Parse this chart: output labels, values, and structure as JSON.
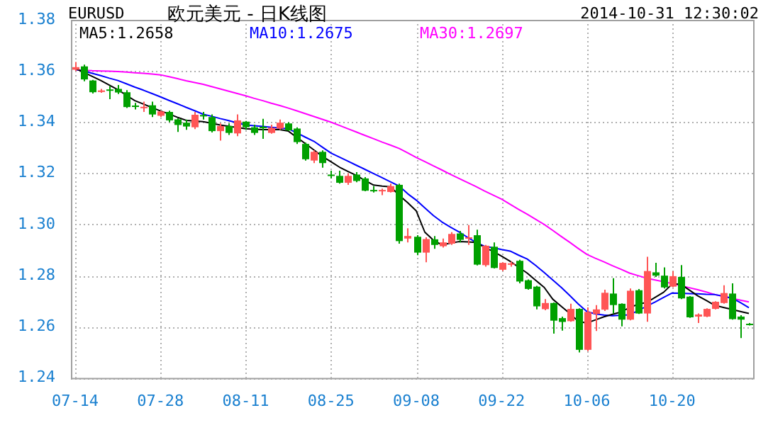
{
  "chart_data": {
    "type": "candlestick",
    "title": "欧元美元 - 日K线图",
    "subtitle": "EURUSD",
    "annotations": [
      "2014-10-31 12:30:02"
    ],
    "categories": [
      "07-14",
      null,
      null,
      null,
      null,
      null,
      null,
      null,
      null,
      null,
      "07-28",
      null,
      null,
      null,
      null,
      null,
      null,
      null,
      null,
      null,
      "08-11",
      null,
      null,
      null,
      null,
      null,
      null,
      null,
      null,
      null,
      "08-25",
      null,
      null,
      null,
      null,
      null,
      null,
      null,
      null,
      null,
      "09-08",
      null,
      null,
      null,
      null,
      null,
      null,
      null,
      null,
      null,
      "09-22",
      null,
      null,
      null,
      null,
      null,
      null,
      null,
      null,
      null,
      "10-06",
      null,
      null,
      null,
      null,
      null,
      null,
      null,
      null,
      null,
      "10-20",
      null,
      null,
      null,
      null,
      null,
      null,
      null,
      null,
      null
    ],
    "ohlc": [
      [
        1.3605,
        1.3635,
        1.36,
        1.3615
      ],
      [
        1.3618,
        1.3625,
        1.356,
        1.3567
      ],
      [
        1.3563,
        1.3565,
        1.3512,
        1.3517
      ],
      [
        1.3518,
        1.353,
        1.3515,
        1.3524
      ],
      [
        1.3528,
        1.3541,
        1.349,
        1.3525
      ],
      [
        1.353,
        1.3545,
        1.351,
        1.3516
      ],
      [
        1.3517,
        1.3525,
        1.3455,
        1.3459
      ],
      [
        1.3465,
        1.3475,
        1.345,
        1.3462
      ],
      [
        1.3455,
        1.348,
        1.344,
        1.346
      ],
      [
        1.3466,
        1.348,
        1.342,
        1.343
      ],
      [
        1.3425,
        1.3445,
        1.342,
        1.3442
      ],
      [
        1.344,
        1.3445,
        1.34,
        1.3407
      ],
      [
        1.3411,
        1.3415,
        1.3362,
        1.3389
      ],
      [
        1.3398,
        1.341,
        1.337,
        1.3383
      ],
      [
        1.338,
        1.344,
        1.3373,
        1.3429
      ],
      [
        1.3428,
        1.344,
        1.341,
        1.3425
      ],
      [
        1.342,
        1.343,
        1.336,
        1.3365
      ],
      [
        1.3365,
        1.3395,
        1.3328,
        1.3385
      ],
      [
        1.3385,
        1.3395,
        1.335,
        1.3358
      ],
      [
        1.3356,
        1.343,
        1.3345,
        1.3407
      ],
      [
        1.3402,
        1.3405,
        1.337,
        1.338
      ],
      [
        1.338,
        1.339,
        1.335,
        1.3358
      ],
      [
        1.3382,
        1.3413,
        1.3335,
        1.338
      ],
      [
        1.3358,
        1.339,
        1.3355,
        1.3378
      ],
      [
        1.3375,
        1.341,
        1.337,
        1.3398
      ],
      [
        1.3395,
        1.34,
        1.3365,
        1.3368
      ],
      [
        1.3375,
        1.338,
        1.3315,
        1.3322
      ],
      [
        1.3315,
        1.332,
        1.325,
        1.3255
      ],
      [
        1.325,
        1.329,
        1.324,
        1.3284
      ],
      [
        1.3284,
        1.329,
        1.3222,
        1.324
      ],
      [
        1.3195,
        1.321,
        1.318,
        1.319
      ],
      [
        1.319,
        1.321,
        1.316,
        1.3163
      ],
      [
        1.3163,
        1.32,
        1.3155,
        1.319
      ],
      [
        1.3195,
        1.3205,
        1.3165,
        1.317
      ],
      [
        1.318,
        1.3185,
        1.313,
        1.3132
      ],
      [
        1.3135,
        1.315,
        1.3125,
        1.3132
      ],
      [
        1.313,
        1.314,
        1.3115,
        1.3135
      ],
      [
        1.3127,
        1.316,
        1.3125,
        1.315
      ],
      [
        1.3155,
        1.316,
        1.2925,
        1.2935
      ],
      [
        1.2945,
        1.2985,
        1.293,
        1.2955
      ],
      [
        1.2952,
        1.2958,
        1.288,
        1.289
      ],
      [
        1.289,
        1.295,
        1.2852,
        1.2943
      ],
      [
        1.2942,
        1.2955,
        1.2905,
        1.292
      ],
      [
        1.2915,
        1.2945,
        1.291,
        1.293
      ],
      [
        1.2925,
        1.297,
        1.292,
        1.2963
      ],
      [
        1.2965,
        1.2975,
        1.293,
        1.294
      ],
      [
        1.2945,
        1.2998,
        1.292,
        1.295
      ],
      [
        1.2958,
        1.298,
        1.284,
        1.2843
      ],
      [
        1.2841,
        1.292,
        1.2835,
        1.2917
      ],
      [
        1.2913,
        1.293,
        1.2828,
        1.283
      ],
      [
        1.2823,
        1.2852,
        1.2818,
        1.285
      ],
      [
        1.2845,
        1.2855,
        1.2835,
        1.2848
      ],
      [
        1.2858,
        1.2862,
        1.277,
        1.2777
      ],
      [
        1.2782,
        1.2785,
        1.2745,
        1.2748
      ],
      [
        1.2757,
        1.276,
        1.2668,
        1.268
      ],
      [
        1.2669,
        1.2708,
        1.2665,
        1.2693
      ],
      [
        1.2693,
        1.2695,
        1.2573,
        1.2624
      ],
      [
        1.2634,
        1.264,
        1.2585,
        1.2619
      ],
      [
        1.2622,
        1.269,
        1.262,
        1.267
      ],
      [
        1.267,
        1.2672,
        1.25,
        1.251
      ],
      [
        1.251,
        1.2676,
        1.2505,
        1.2658
      ],
      [
        1.265,
        1.2685,
        1.2584,
        1.2668
      ],
      [
        1.2667,
        1.2745,
        1.2662,
        1.2733
      ],
      [
        1.273,
        1.279,
        1.2652,
        1.2685
      ],
      [
        1.269,
        1.2692,
        1.2602,
        1.2628
      ],
      [
        1.2628,
        1.275,
        1.2625,
        1.2741
      ],
      [
        1.2743,
        1.2748,
        1.265,
        1.2652
      ],
      [
        1.2652,
        1.2874,
        1.262,
        1.2818
      ],
      [
        1.2813,
        1.285,
        1.2795,
        1.28
      ],
      [
        1.28,
        1.2832,
        1.275,
        1.2754
      ],
      [
        1.2757,
        1.2818,
        1.2755,
        1.2798
      ],
      [
        1.2795,
        1.2841,
        1.2708,
        1.2711
      ],
      [
        1.2718,
        1.272,
        1.2635,
        1.2637
      ],
      [
        1.264,
        1.2652,
        1.2615,
        1.2648
      ],
      [
        1.264,
        1.2672,
        1.2638,
        1.267
      ],
      [
        1.267,
        1.27,
        1.2668,
        1.2698
      ],
      [
        1.2693,
        1.2762,
        1.269,
        1.2732
      ],
      [
        1.273,
        1.277,
        1.2628,
        1.263
      ],
      [
        1.264,
        1.2645,
        1.2556,
        1.2628
      ],
      [
        1.2612,
        1.2615,
        1.2605,
        1.261
      ]
    ],
    "colors": [
      "#ff5555",
      "#00a000",
      "#00a000",
      "#ff5555",
      "#00a000",
      "#00a000",
      "#00a000",
      "#00a000",
      "#ff5555",
      "#00a000",
      "#ff5555",
      "#00a000",
      "#00a000",
      "#00a000",
      "#ff5555",
      "#00a000",
      "#00a000",
      "#ff5555",
      "#00a000",
      "#ff5555",
      "#00a000",
      "#00a000",
      "#00a000",
      "#ff5555",
      "#ff5555",
      "#00a000",
      "#00a000",
      "#00a000",
      "#ff5555",
      "#00a000",
      "#00a000",
      "#00a000",
      "#ff5555",
      "#00a000",
      "#00a000",
      "#00a000",
      "#ff5555",
      "#ff5555",
      "#00a000",
      "#ff5555",
      "#00a000",
      "#ff5555",
      "#00a000",
      "#ff5555",
      "#ff5555",
      "#00a000",
      "#ff5555",
      "#00a000",
      "#ff5555",
      "#00a000",
      "#ff5555",
      "#ff5555",
      "#00a000",
      "#00a000",
      "#00a000",
      "#ff5555",
      "#00a000",
      "#00a000",
      "#ff5555",
      "#00a000",
      "#ff5555",
      "#ff5555",
      "#ff5555",
      "#00a000",
      "#00a000",
      "#ff5555",
      "#00a000",
      "#ff5555",
      "#00a000",
      "#00a000",
      "#ff5555",
      "#00a000",
      "#00a000",
      "#ff5555",
      "#ff5555",
      "#ff5555",
      "#ff5555",
      "#00a000",
      "#00a000",
      "#00a000"
    ],
    "series": [
      {
        "type": "line",
        "name": "MA5:1.2658",
        "color": "#000000",
        "values": [
          1.361,
          1.3595,
          1.3579,
          1.3563,
          1.3545,
          1.3527,
          1.3505,
          1.3484,
          1.3471,
          1.3457,
          1.3444,
          1.3432,
          1.3419,
          1.3407,
          1.3405,
          1.3402,
          1.3396,
          1.3389,
          1.3384,
          1.3379,
          1.3374,
          1.3372,
          1.3371,
          1.3371,
          1.3371,
          1.3365,
          1.334,
          1.3316,
          1.3291,
          1.3266,
          1.3245,
          1.3224,
          1.3207,
          1.3191,
          1.3172,
          1.3154,
          1.315,
          1.3147,
          1.3114,
          1.3085,
          1.3053,
          1.297,
          1.2939,
          1.292,
          1.2927,
          1.2933,
          1.2932,
          1.293,
          1.2911,
          1.2895,
          1.2876,
          1.2856,
          1.2833,
          1.281,
          1.2782,
          1.2754,
          1.2708,
          1.268,
          1.2652,
          1.2621,
          1.2615,
          1.2627,
          1.2639,
          1.2649,
          1.2658,
          1.2675,
          1.2688,
          1.2695,
          1.2715,
          1.2735,
          1.2767,
          1.2767,
          1.2744,
          1.2721,
          1.2703,
          1.2684,
          1.2676,
          1.2668,
          1.266,
          1.2652
        ]
      },
      {
        "type": "line",
        "name": "MA10:1.2675",
        "color": "#0000ff",
        "values": [
          1.3606,
          1.36,
          1.3591,
          1.3582,
          1.3572,
          1.3563,
          1.355,
          1.3537,
          1.3525,
          1.3512,
          1.3499,
          1.3485,
          1.3472,
          1.3458,
          1.3445,
          1.3431,
          1.3423,
          1.3414,
          1.3406,
          1.3397,
          1.3389,
          1.3386,
          1.3383,
          1.338,
          1.3377,
          1.3374,
          1.3358,
          1.3341,
          1.3325,
          1.3302,
          1.3279,
          1.3263,
          1.3247,
          1.3231,
          1.3215,
          1.3199,
          1.3183,
          1.3166,
          1.315,
          1.312,
          1.3095,
          1.3065,
          1.3035,
          1.301,
          1.299,
          1.2971,
          1.295,
          1.293,
          1.2915,
          1.2909,
          1.2902,
          1.2896,
          1.288,
          1.2865,
          1.284,
          1.2812,
          1.2783,
          1.2754,
          1.2722,
          1.2689,
          1.266,
          1.265,
          1.2646,
          1.2643,
          1.2645,
          1.2647,
          1.2663,
          1.268,
          1.2697,
          1.2715,
          1.2732,
          1.2731,
          1.273,
          1.2729,
          1.2727,
          1.2726,
          1.272,
          1.2712,
          1.2695,
          1.2675
        ]
      },
      {
        "type": "line",
        "name": "MA30:1.2697",
        "color": "#ff00ff",
        "values": [
          1.3605,
          1.3603,
          1.3601,
          1.36,
          1.3599,
          1.3598,
          1.3596,
          1.3593,
          1.3591,
          1.3588,
          1.3585,
          1.3578,
          1.357,
          1.3562,
          1.3555,
          1.3548,
          1.3539,
          1.353,
          1.3521,
          1.3512,
          1.3503,
          1.3493,
          1.3484,
          1.3474,
          1.3465,
          1.3455,
          1.3444,
          1.3433,
          1.3422,
          1.3411,
          1.34,
          1.3387,
          1.3374,
          1.3361,
          1.3348,
          1.3335,
          1.3322,
          1.331,
          1.3297,
          1.328,
          1.3262,
          1.3246,
          1.3229,
          1.3213,
          1.3196,
          1.318,
          1.3164,
          1.3148,
          1.3131,
          1.3115,
          1.3099,
          1.3079,
          1.3059,
          1.304,
          1.302,
          1.3,
          1.2977,
          1.2953,
          1.293,
          1.2906,
          1.2883,
          1.2868,
          1.2854,
          1.2839,
          1.2825,
          1.281,
          1.28,
          1.279,
          1.2783,
          1.2776,
          1.2769,
          1.2761,
          1.2753,
          1.2745,
          1.2736,
          1.2726,
          1.2719,
          1.2711,
          1.2704,
          1.2697
        ]
      }
    ],
    "ylim": [
      1.24,
      1.38
    ],
    "yticks": [
      1.24,
      1.26,
      1.28,
      {
        "value": 1.3,
        "label": "1.30"
      },
      1.32,
      1.34,
      1.36,
      1.38
    ],
    "grid": true,
    "legend": "top left",
    "marker": "none"
  }
}
